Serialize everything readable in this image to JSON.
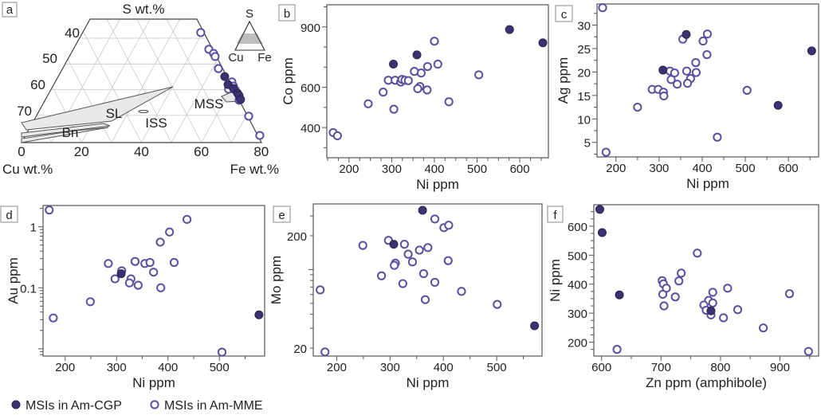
{
  "colors": {
    "filled": "#3b3270",
    "open_stroke": "#5b50a0",
    "frame": "#555555",
    "field": "#e8e8ea",
    "grid": "#c8c8c8"
  },
  "legend": {
    "placement": "bottom-left",
    "items": [
      {
        "label": "MSIs in Am-CGP",
        "marker": "filled-circle"
      },
      {
        "label": "MSIs in Am-MME",
        "marker": "open-circle"
      }
    ]
  },
  "chart_data": [
    {
      "panel": "a",
      "type": "ternary",
      "top_label": "S wt.%",
      "bottom_left_label": "Cu wt.%",
      "bottom_right_label": "Fe wt.%",
      "bottom_ticks": [
        0,
        20,
        40,
        60,
        80
      ],
      "left_ticks": [
        40,
        50,
        60,
        70
      ],
      "fields": [
        "SL",
        "Bn",
        "ISS",
        "MSS"
      ],
      "inset_labels": [
        "S",
        "Cu",
        "Fe"
      ],
      "series": [
        {
          "name": "MSIs in Am-CGP",
          "filled": true,
          "points": [
            [
              67.8,
              54.9
            ],
            [
              68.9,
              58.0
            ],
            [
              70.7,
              59.5
            ],
            [
              72.1,
              61.4
            ],
            [
              72.6,
              62.3
            ],
            [
              73.1,
              63.8
            ]
          ]
        },
        {
          "name": "MSIs in Am-MME",
          "filled": false,
          "points": [
            [
              59.8,
              37.8
            ],
            [
              62.5,
              44.3
            ],
            [
              64.1,
              45.9
            ],
            [
              64.6,
              47.1
            ],
            [
              65.7,
              51.8
            ],
            [
              70.2,
              57.0
            ],
            [
              70.7,
              58.6
            ],
            [
              71.3,
              60.1
            ],
            [
              69.1,
              59.8
            ],
            [
              72.6,
              64.1
            ],
            [
              75.8,
              70.3
            ],
            [
              79.5,
              77.8
            ]
          ]
        }
      ]
    },
    {
      "panel": "b",
      "type": "scatter",
      "xlabel": "Ni ppm",
      "ylabel": "Co ppm",
      "xlim": [
        148,
        667
      ],
      "ylim": [
        250,
        1010
      ],
      "yscale": "linear",
      "xticks": [
        200,
        300,
        400,
        500,
        600
      ],
      "x_minor": 25,
      "yticks": [
        400,
        600,
        900
      ],
      "y_minor": 100,
      "series": [
        {
          "name": "MSIs in Am-CGP",
          "filled": true,
          "points": [
            [
              576,
              887
            ],
            [
              654,
              821
            ],
            [
              359,
              761
            ],
            [
              304,
              715
            ]
          ]
        },
        {
          "name": "MSIs in Am-MME",
          "filled": false,
          "points": [
            [
              400,
              829
            ],
            [
              408,
              715
            ],
            [
              384,
              703
            ],
            [
              369,
              671
            ],
            [
              353,
              679
            ],
            [
              504,
              662
            ],
            [
              292,
              635
            ],
            [
              308,
              635
            ],
            [
              321,
              626
            ],
            [
              324,
              639
            ],
            [
              331,
              635
            ],
            [
              339,
              633
            ],
            [
              366,
              604
            ],
            [
              361,
              593
            ],
            [
              383,
              587
            ],
            [
              280,
              576
            ],
            [
              245,
              518
            ],
            [
              305,
              491
            ],
            [
              434,
              528
            ],
            [
              163,
              375
            ],
            [
              173,
              359
            ]
          ]
        }
      ]
    },
    {
      "panel": "c",
      "type": "scatter",
      "xlabel": "Ni ppm",
      "ylabel": "Ag ppm",
      "xlim": [
        156,
        670
      ],
      "ylim": [
        1.9,
        34.5
      ],
      "yscale": "linear",
      "xticks": [
        200,
        300,
        400,
        500,
        600
      ],
      "x_minor": 50,
      "yticks": [
        5,
        10,
        15,
        20,
        25,
        30
      ],
      "y_minor": 2.5,
      "series": [
        {
          "name": "MSIs in Am-CGP",
          "filled": true,
          "points": [
            [
              363,
              28.0
            ],
            [
              309,
              20.4
            ],
            [
              654,
              24.5
            ],
            [
              576,
              12.9
            ]
          ]
        },
        {
          "name": "MSIs in Am-MME",
          "filled": false,
          "points": [
            [
              169,
              33.7
            ],
            [
              355,
              27.0
            ],
            [
              412,
              28.1
            ],
            [
              402,
              26.6
            ],
            [
              411,
              23.7
            ],
            [
              385,
              22.0
            ],
            [
              386,
              19.9
            ],
            [
              364,
              20.2
            ],
            [
              373,
              18.6
            ],
            [
              366,
              17.6
            ],
            [
              325,
              20.2
            ],
            [
              336,
              19.8
            ],
            [
              328,
              18.4
            ],
            [
              342,
              17.4
            ],
            [
              284,
              16.3
            ],
            [
              298,
              16.3
            ],
            [
              310,
              15.7
            ],
            [
              311,
              14.9
            ],
            [
              504,
              16.1
            ],
            [
              250,
              12.5
            ],
            [
              435,
              6.1
            ],
            [
              177,
              2.9
            ]
          ]
        }
      ]
    },
    {
      "panel": "d",
      "type": "scatter",
      "xlabel": "Ni ppm",
      "ylabel": "Au ppm",
      "xlim": [
        157,
        588
      ],
      "ylim": [
        0.0076,
        2.23
      ],
      "yscale": "log",
      "xticks": [
        200,
        300,
        400,
        500
      ],
      "x_minor": 50,
      "yticks": [
        0.1,
        1
      ],
      "y_minor": "log",
      "series": [
        {
          "name": "MSIs in Am-CGP",
          "filled": true,
          "points": [
            [
              309,
              0.17
            ],
            [
              577,
              0.036
            ]
          ]
        },
        {
          "name": "MSIs in Am-MME",
          "filled": false,
          "points": [
            [
              169,
              1.88
            ],
            [
              437,
              1.32
            ],
            [
              403,
              0.82
            ],
            [
              385,
              0.56
            ],
            [
              284,
              0.25
            ],
            [
              336,
              0.27
            ],
            [
              355,
              0.25
            ],
            [
              365,
              0.26
            ],
            [
              412,
              0.26
            ],
            [
              372,
              0.18
            ],
            [
              310,
              0.19
            ],
            [
              297,
              0.14
            ],
            [
              328,
              0.14
            ],
            [
              325,
              0.12
            ],
            [
              342,
              0.11
            ],
            [
              386,
              0.1
            ],
            [
              249,
              0.059
            ],
            [
              177,
              0.032
            ],
            [
              505,
              0.0088
            ]
          ]
        }
      ]
    },
    {
      "panel": "e",
      "type": "scatter",
      "xlabel": "Ni ppm",
      "ylabel": "Mo ppm",
      "xlim": [
        156,
        585
      ],
      "ylim": [
        17,
        384
      ],
      "yscale": "log",
      "xticks": [
        200,
        300,
        400,
        500
      ],
      "x_minor": 50,
      "yticks": [
        20,
        200
      ],
      "y_minor": "log",
      "series": [
        {
          "name": "MSIs in Am-CGP",
          "filled": true,
          "points": [
            [
              361,
              337
            ],
            [
              307,
              168
            ],
            [
              571,
              31.6
            ]
          ]
        },
        {
          "name": "MSIs in Am-MME",
          "filled": false,
          "points": [
            [
              384,
              282
            ],
            [
              401,
              236
            ],
            [
              410,
              248
            ],
            [
              297,
              182
            ],
            [
              249,
              164
            ],
            [
              327,
              168
            ],
            [
              334,
              137
            ],
            [
              355,
              149
            ],
            [
              371,
              157
            ],
            [
              342,
              117
            ],
            [
              310,
              114
            ],
            [
              308,
              109
            ],
            [
              409,
              120
            ],
            [
              363,
              92
            ],
            [
              284,
              88
            ],
            [
              324,
              75
            ],
            [
              384,
              77
            ],
            [
              169,
              66
            ],
            [
              434,
              64
            ],
            [
              366,
              54
            ],
            [
              501,
              49
            ],
            [
              178,
              18.5
            ]
          ]
        }
      ]
    },
    {
      "panel": "f",
      "type": "scatter",
      "xlabel": "Zn ppm (amphibole)",
      "ylabel": "Ni ppm",
      "xlim": [
        587,
        965
      ],
      "ylim": [
        152,
        674
      ],
      "yscale": "linear",
      "xticks": [
        600,
        700,
        800,
        900
      ],
      "x_minor": 50,
      "yticks": [
        200,
        300,
        400,
        500,
        600
      ],
      "y_minor": 25,
      "series": [
        {
          "name": "MSIs in Am-CGP",
          "filled": true,
          "points": [
            [
              597,
              658
            ],
            [
              601,
              578
            ],
            [
              630,
              363
            ],
            [
              784,
              308
            ]
          ]
        },
        {
          "name": "MSIs in Am-MME",
          "filled": false,
          "points": [
            [
              761,
              507
            ],
            [
              734,
              438
            ],
            [
              730,
              411
            ],
            [
              702,
              412
            ],
            [
              704,
              401
            ],
            [
              709,
              386
            ],
            [
              703,
              365
            ],
            [
              724,
              356
            ],
            [
              705,
              325
            ],
            [
              812,
              386
            ],
            [
              787,
              372
            ],
            [
              780,
              344
            ],
            [
              787,
              335
            ],
            [
              772,
              328
            ],
            [
              776,
              310
            ],
            [
              784,
              294
            ],
            [
              805,
              284
            ],
            [
              829,
              312
            ],
            [
              872,
              249
            ],
            [
              916,
              367
            ],
            [
              626,
              175
            ],
            [
              948,
              168
            ]
          ]
        }
      ]
    }
  ]
}
